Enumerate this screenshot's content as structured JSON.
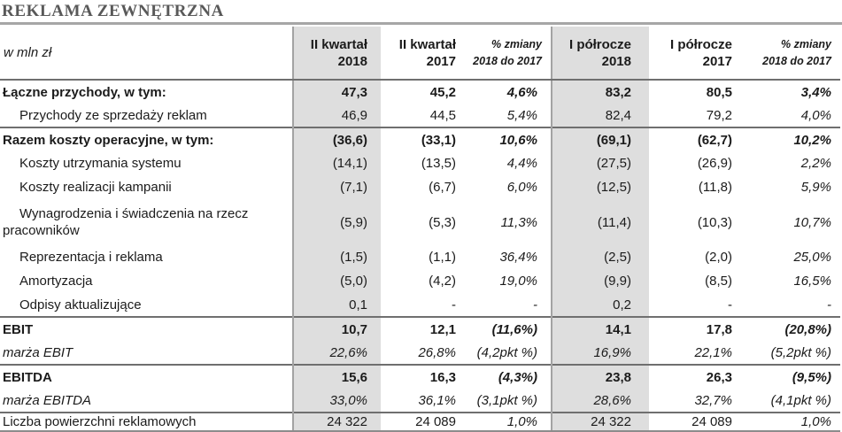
{
  "title": "REKLAMA ZEWNĘTRZNA",
  "unit_label": "w mln zł",
  "colors": {
    "title_text": "#595959",
    "title_rule": "#a6a6a6",
    "shaded_column": "#dedede",
    "grid_line": "#6f6f6f"
  },
  "header": {
    "cols": [
      {
        "l1": "II kwartał",
        "l2": "2018"
      },
      {
        "l1": "II kwartał",
        "l2": "2017"
      },
      {
        "l1": "% zmiany",
        "l2": "2018 do 2017"
      },
      {
        "l1": "I półrocze",
        "l2": "2018"
      },
      {
        "l1": "I półrocze",
        "l2": "2017"
      },
      {
        "l1": "% zmiany",
        "l2": "2018 do 2017"
      }
    ]
  },
  "rows": [
    {
      "label": "Łączne przychody, w tym:",
      "style": "total",
      "values": [
        "47,3",
        "45,2",
        "4,6%",
        "83,2",
        "80,5",
        "3,4%"
      ]
    },
    {
      "label": "Przychody ze sprzedaży reklam",
      "style": "sub",
      "values": [
        "46,9",
        "44,5",
        "5,4%",
        "82,4",
        "79,2",
        "4,0%"
      ]
    },
    {
      "label": "Razem koszty operacyjne, w tym:",
      "style": "total",
      "values": [
        "(36,6)",
        "(33,1)",
        "10,6%",
        "(69,1)",
        "(62,7)",
        "10,2%"
      ]
    },
    {
      "label": "Koszty utrzymania systemu",
      "style": "sub",
      "values": [
        "(14,1)",
        "(13,5)",
        "4,4%",
        "(27,5)",
        "(26,9)",
        "2,2%"
      ]
    },
    {
      "label": "Koszty realizacji kampanii",
      "style": "sub",
      "values": [
        "(7,1)",
        "(6,7)",
        "6,0%",
        "(12,5)",
        "(11,8)",
        "5,9%"
      ]
    },
    {
      "label": "Wynagrodzenia i świadczenia na rzecz pracowników",
      "style": "sub",
      "values": [
        "(5,9)",
        "(5,3)",
        "11,3%",
        "(11,4)",
        "(10,3)",
        "10,7%"
      ]
    },
    {
      "label": "Reprezentacja i reklama",
      "style": "sub",
      "values": [
        "(1,5)",
        "(1,1)",
        "36,4%",
        "(2,5)",
        "(2,0)",
        "25,0%"
      ]
    },
    {
      "label": "Amortyzacja",
      "style": "sub",
      "values": [
        "(5,0)",
        "(4,2)",
        "19,0%",
        "(9,9)",
        "(8,5)",
        "16,5%"
      ]
    },
    {
      "label": "Odpisy aktualizujące",
      "style": "sub",
      "values": [
        "0,1",
        "-",
        "-",
        "0,2",
        "-",
        "-"
      ]
    },
    {
      "label": "EBIT",
      "style": "total",
      "values": [
        "10,7",
        "12,1",
        "(11,6%)",
        "14,1",
        "17,8",
        "(20,8%)"
      ]
    },
    {
      "label": "marża EBIT",
      "style": "margin",
      "values": [
        "22,6%",
        "26,8%",
        "(4,2pkt %)",
        "16,9%",
        "22,1%",
        "(5,2pkt %)"
      ]
    },
    {
      "label": "EBITDA",
      "style": "total",
      "values": [
        "15,6",
        "16,3",
        "(4,3%)",
        "23,8",
        "26,3",
        "(9,5%)"
      ]
    },
    {
      "label": "marża EBITDA",
      "style": "margin",
      "values": [
        "33,0%",
        "36,1%",
        "(3,1pkt %)",
        "28,6%",
        "32,7%",
        "(4,1pkt %)"
      ]
    },
    {
      "label": "Liczba powierzchni reklamowych",
      "style": "plain",
      "values": [
        "24 322",
        "24 089",
        "1,0%",
        "24 322",
        "24 089",
        "1,0%"
      ]
    }
  ]
}
